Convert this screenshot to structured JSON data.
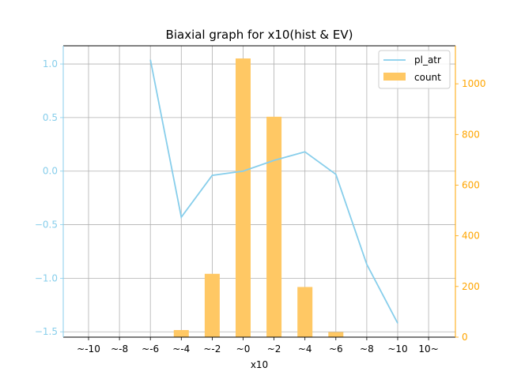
{
  "chart_data": {
    "type": "bar+line",
    "title": "Biaxial graph for x10(hist & EV)",
    "xlabel": "x10",
    "categories": [
      "~-10",
      "~-8",
      "~-6",
      "~-4",
      "~-2",
      "~0",
      "~2",
      "~4",
      "~6",
      "~8",
      "~10",
      "10~"
    ],
    "series": [
      {
        "name": "pl_atr",
        "type": "line",
        "axis": "left",
        "color": "#87ceeb",
        "values": [
          null,
          null,
          1.04,
          -0.43,
          -0.04,
          0.0,
          0.1,
          0.18,
          -0.03,
          -0.87,
          -1.42,
          null
        ]
      },
      {
        "name": "count",
        "type": "bar",
        "axis": "right",
        "color": "#ffc864",
        "values": [
          0,
          0,
          0,
          28,
          250,
          1100,
          870,
          198,
          20,
          0,
          0,
          0
        ]
      }
    ],
    "y_left": {
      "ylim": [
        -1.55,
        1.17
      ],
      "ticks": [
        -1.5,
        -1.0,
        -0.5,
        0.0,
        0.5,
        1.0
      ],
      "tick_labels": [
        "−1.5",
        "−1.0",
        "−0.5",
        "0.0",
        "0.5",
        "1.0"
      ],
      "color": "#87ceeb"
    },
    "y_right": {
      "ylim": [
        0,
        1150
      ],
      "ticks": [
        0,
        200,
        400,
        600,
        800,
        1000
      ],
      "tick_labels": [
        "0",
        "200",
        "400",
        "600",
        "800",
        "1000"
      ],
      "color": "#ffa500"
    },
    "grid": true,
    "legend": "top-right"
  }
}
